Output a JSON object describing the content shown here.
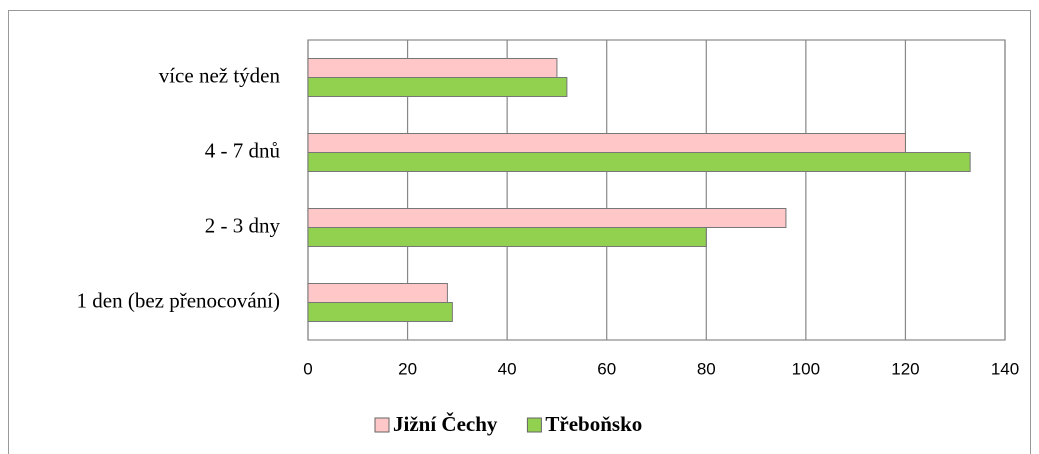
{
  "chart_data": {
    "type": "hbar",
    "categories": [
      "1 den (bez přenocování)",
      "2 - 3 dny",
      "4 - 7 dnů",
      "více než týden"
    ],
    "series": [
      {
        "name": "Jižní Čechy",
        "color": "#ffc7c7",
        "values": [
          28,
          96,
          120,
          50
        ]
      },
      {
        "name": "Třeboňsko",
        "color": "#92d050",
        "values": [
          29,
          80,
          133,
          52
        ]
      }
    ],
    "xlim": [
      0,
      140
    ],
    "xticks": [
      0,
      20,
      40,
      60,
      80,
      100,
      120,
      140
    ],
    "grid": true,
    "legend": "bottom"
  }
}
